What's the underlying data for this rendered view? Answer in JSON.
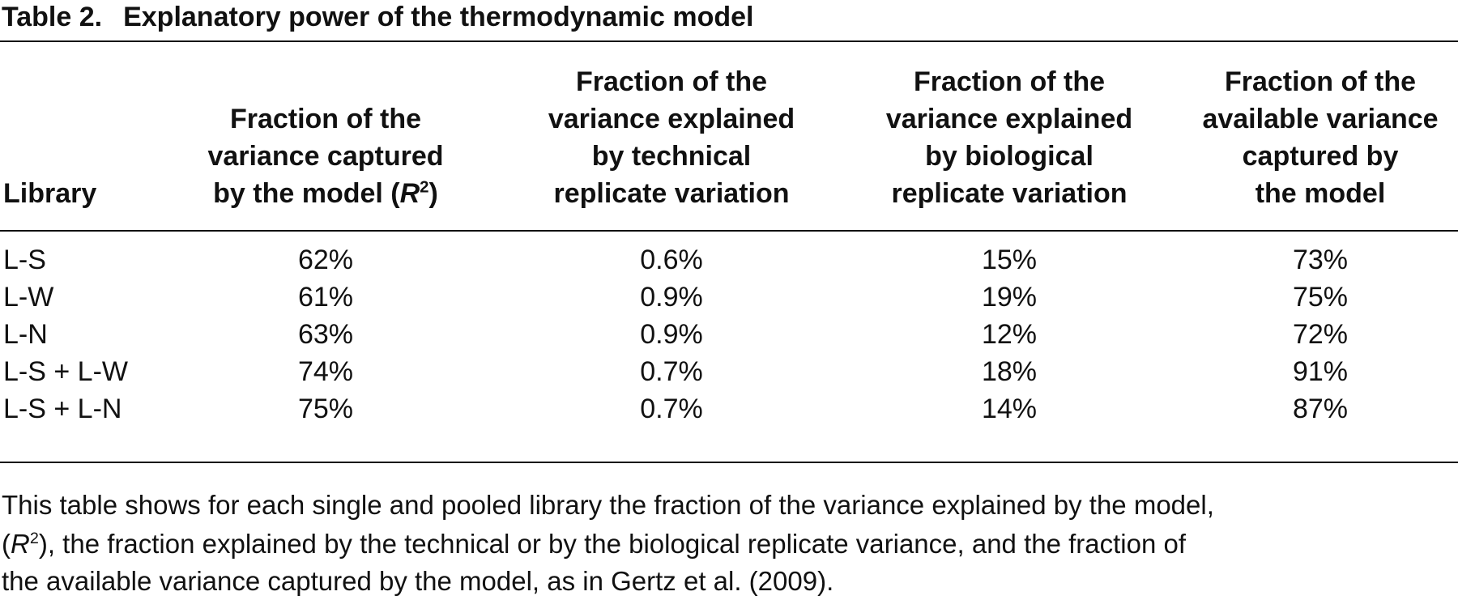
{
  "title": {
    "label": "Table 2.",
    "text": "Explanatory power of the thermodynamic model"
  },
  "table": {
    "header": [
      [
        "Library"
      ],
      [
        "Fraction of the",
        "variance captured",
        [
          "by the model (",
          "R",
          "2",
          ")"
        ]
      ],
      [
        "Fraction of the",
        "variance explained",
        "by technical",
        "replicate variation"
      ],
      [
        "Fraction of the",
        "variance explained",
        "by biological",
        "replicate variation"
      ],
      [
        "Fraction of the",
        "available variance",
        "captured by",
        "the model"
      ]
    ],
    "rows": [
      [
        "L-S",
        "62%",
        "0.6%",
        "15%",
        "73%"
      ],
      [
        "L-W",
        "61%",
        "0.9%",
        "19%",
        "75%"
      ],
      [
        "L-N",
        "63%",
        "0.9%",
        "12%",
        "72%"
      ],
      [
        "L-S + L-W",
        "74%",
        "0.7%",
        "18%",
        "91%"
      ],
      [
        "L-S + L-N",
        "75%",
        "0.7%",
        "14%",
        "87%"
      ]
    ]
  },
  "caption": [
    [
      "This table shows for each single and pooled library the fraction of the variance explained by the model,"
    ],
    [
      "(",
      "R",
      "2",
      "), the fraction explained by the technical or by the biological replicate variance, and the fraction of"
    ],
    [
      "the available variance captured by the model, as in Gertz et al. (2009)."
    ]
  ]
}
